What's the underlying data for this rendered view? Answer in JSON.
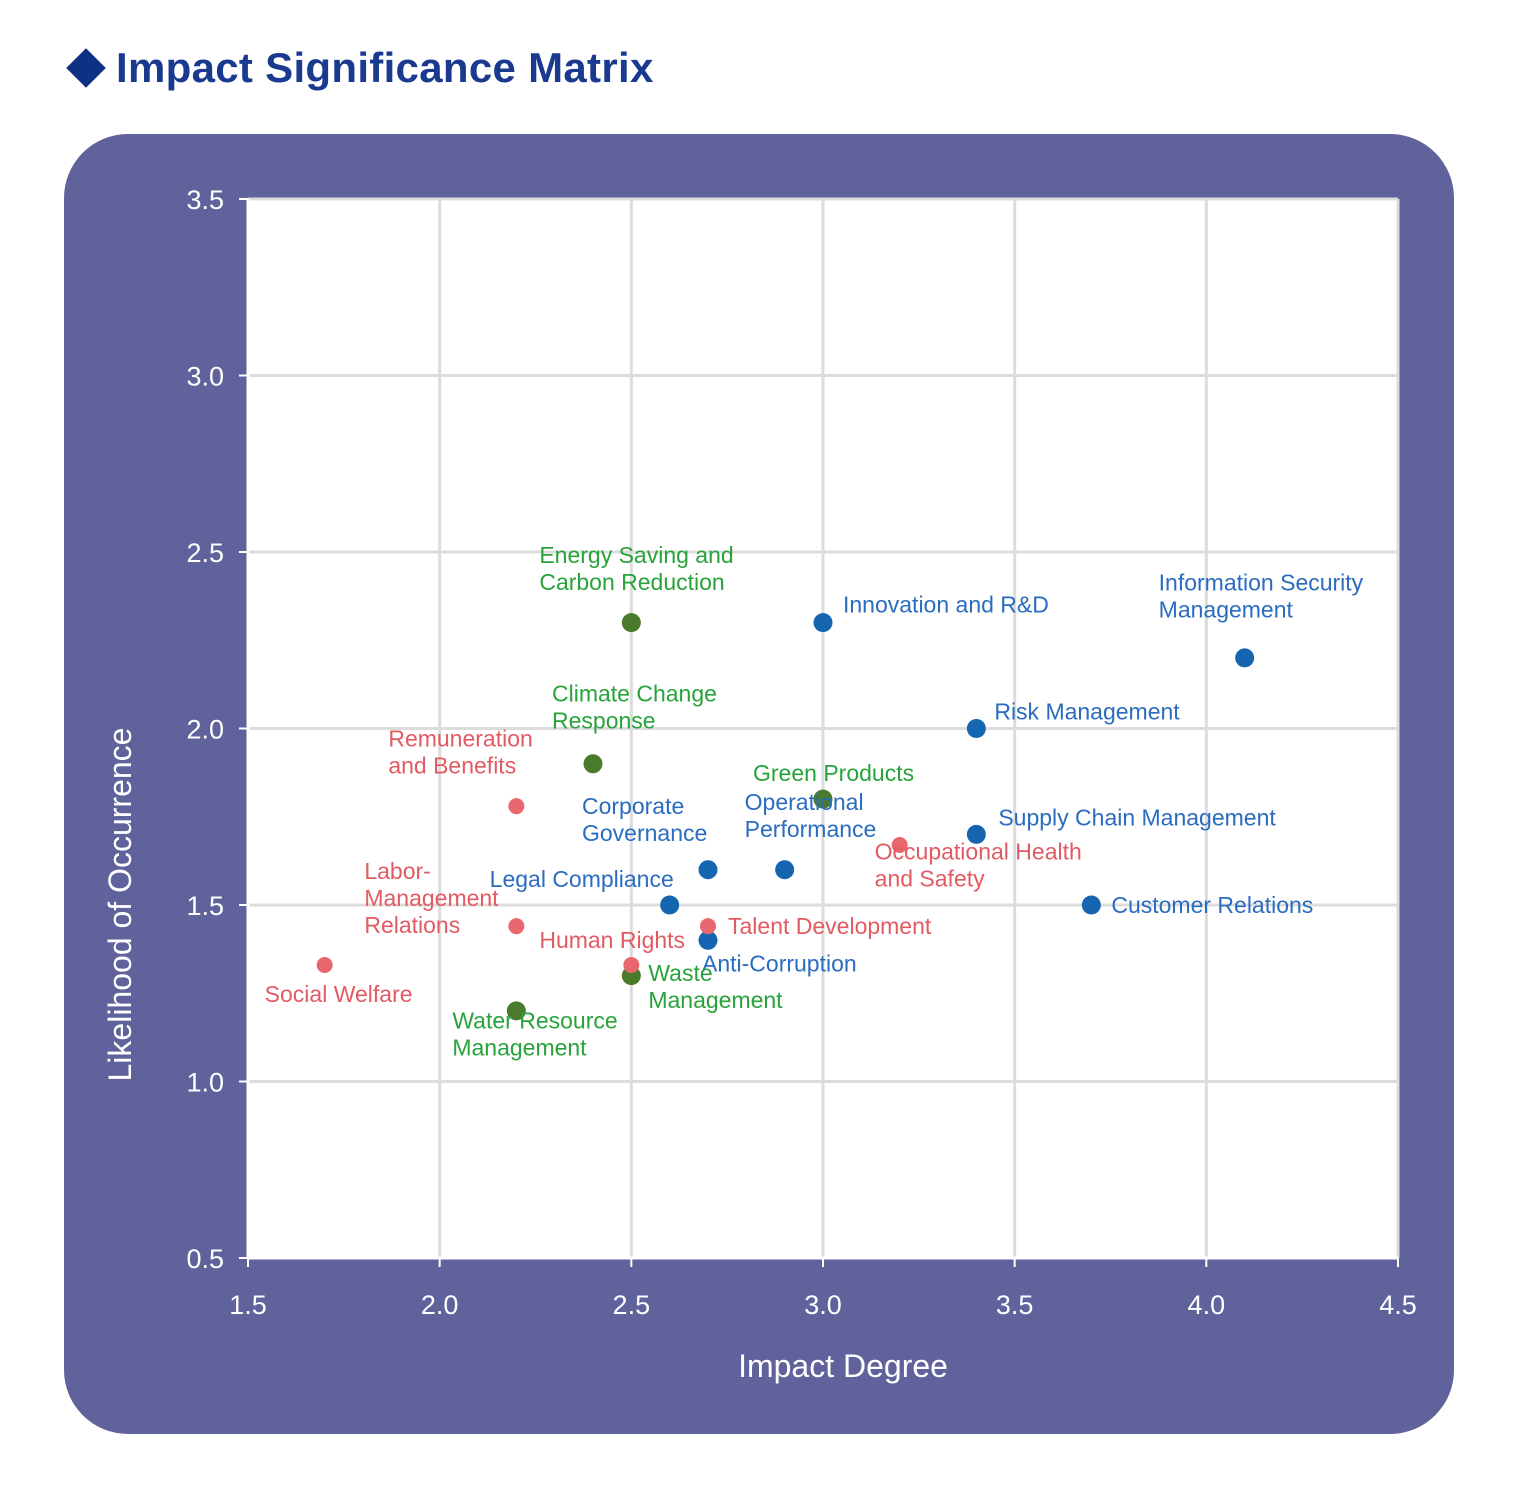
{
  "title": "Impact Significance Matrix",
  "colors": {
    "title": "#1a3a8f",
    "diamond": "#0f3184",
    "panel": "#60629c",
    "plot_background": "#ffffff",
    "grid": "#dcdcdc",
    "governance_marker": "#1565b0",
    "governance_label": "#2a6cbf",
    "environment_marker": "#4a7a2c",
    "environment_label": "#27a33a",
    "social_marker": "#e8666e",
    "social_label": "#e25a62"
  },
  "chart_data": {
    "type": "scatter",
    "title": "",
    "xlabel": "Impact Degree",
    "ylabel": "Likelihood of Occurrence",
    "xlim": [
      1.5,
      4.5
    ],
    "ylim": [
      0.5,
      3.5
    ],
    "xticks": [
      "1.5",
      "2.0",
      "2.5",
      "3.0",
      "3.5",
      "4.0",
      "4.5"
    ],
    "yticks": [
      "0.5",
      "1.0",
      "1.5",
      "2.0",
      "2.5",
      "3.0",
      "3.5"
    ],
    "grid": true,
    "legend": "none",
    "points": [
      {
        "label": [
          "Information Security",
          "Management"
        ],
        "x": 4.1,
        "y": 2.2,
        "group": "governance"
      },
      {
        "label": [
          "Innovation and R&D"
        ],
        "x": 3.0,
        "y": 2.3,
        "group": "governance"
      },
      {
        "label": [
          "Risk Management"
        ],
        "x": 3.4,
        "y": 2.0,
        "group": "governance"
      },
      {
        "label": [
          "Supply Chain Management"
        ],
        "x": 3.4,
        "y": 1.7,
        "group": "governance"
      },
      {
        "label": [
          "Customer Relations"
        ],
        "x": 3.7,
        "y": 1.5,
        "group": "governance"
      },
      {
        "label": [
          "Operational",
          "Performance"
        ],
        "x": 2.9,
        "y": 1.6,
        "group": "governance"
      },
      {
        "label": [
          "Corporate",
          "Governance"
        ],
        "x": 2.7,
        "y": 1.6,
        "group": "governance"
      },
      {
        "label": [
          "Legal Compliance"
        ],
        "x": 2.6,
        "y": 1.5,
        "group": "governance"
      },
      {
        "label": [
          "Anti-Corruption"
        ],
        "x": 2.7,
        "y": 1.4,
        "group": "governance"
      },
      {
        "label": [
          "Energy Saving and",
          "Carbon Reduction"
        ],
        "x": 2.5,
        "y": 2.3,
        "group": "environment"
      },
      {
        "label": [
          "Climate Change",
          "Response"
        ],
        "x": 2.4,
        "y": 1.9,
        "group": "environment"
      },
      {
        "label": [
          "Green Products"
        ],
        "x": 3.0,
        "y": 1.8,
        "group": "environment"
      },
      {
        "label": [
          "Waste",
          "Management"
        ],
        "x": 2.5,
        "y": 1.3,
        "group": "environment"
      },
      {
        "label": [
          "Water Resource",
          "Management"
        ],
        "x": 2.2,
        "y": 1.2,
        "group": "environment"
      },
      {
        "label": [
          "Remuneration",
          "and Benefits"
        ],
        "x": 2.2,
        "y": 1.78,
        "group": "social"
      },
      {
        "label": [
          "Occupational Health",
          "and Safety"
        ],
        "x": 3.2,
        "y": 1.67,
        "group": "social"
      },
      {
        "label": [
          "Talent Development"
        ],
        "x": 2.7,
        "y": 1.44,
        "group": "social"
      },
      {
        "label": [
          "Labor-",
          "Management",
          "Relations"
        ],
        "x": 2.2,
        "y": 1.44,
        "group": "social"
      },
      {
        "label": [
          "Human Rights"
        ],
        "x": 2.5,
        "y": 1.33,
        "group": "social"
      },
      {
        "label": [
          "Social Welfare"
        ],
        "x": 1.7,
        "y": 1.33,
        "group": "social"
      }
    ]
  }
}
